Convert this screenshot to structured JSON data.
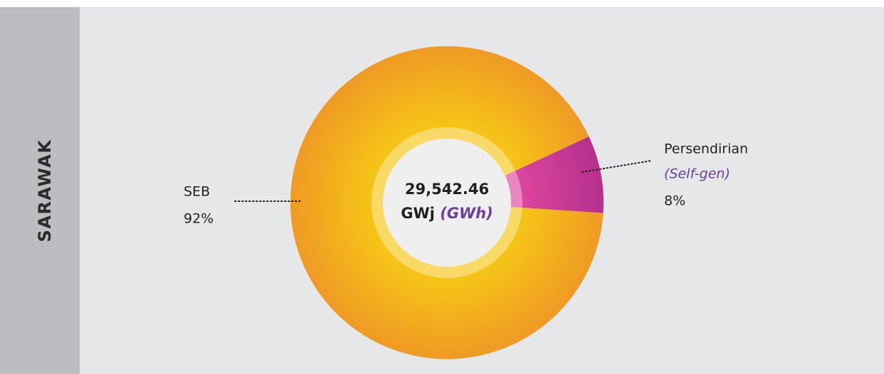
{
  "region": "SARAWAK",
  "chart_data": {
    "type": "pie",
    "donut": true,
    "total": "29,542.46",
    "unit": "GWj",
    "unit_en": "(GWh)",
    "categories": [
      "SEB",
      "Persendirian"
    ],
    "category_translations": [
      null,
      "(Self-gen)"
    ],
    "values": [
      92,
      8
    ],
    "value_labels": [
      "92%",
      "8%"
    ],
    "colors": [
      [
        "#f6c716",
        "#ef9a24"
      ],
      [
        "#de469f",
        "#b5318c"
      ]
    ]
  }
}
